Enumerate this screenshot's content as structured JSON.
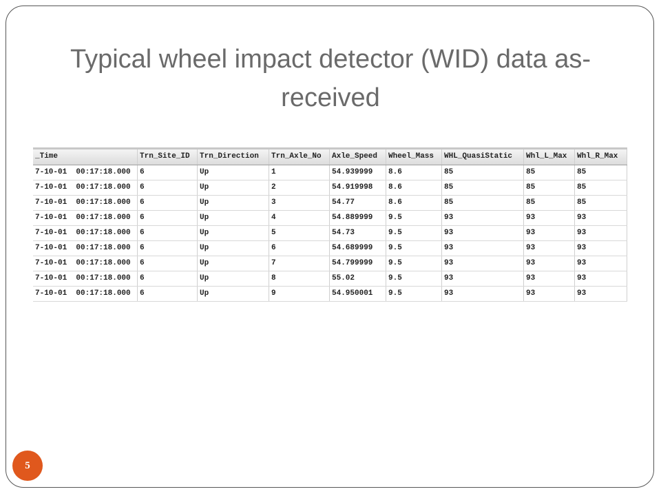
{
  "slide": {
    "title": "Typical wheel impact detector (WID) data as-received",
    "page_number": "5"
  },
  "table": {
    "columns": [
      "_Time",
      "Trn_Site_ID",
      "Trn_Direction",
      "Trn_Axle_No",
      "Axle_Speed",
      "Wheel_Mass",
      "WHL_QuasiStatic",
      "Whl_L_Max",
      "Whl_R_Max"
    ],
    "rows": [
      [
        "7-10-01  00:17:18.000",
        "6",
        "Up",
        "1",
        "54.939999",
        "8.6",
        "85",
        "85",
        "85"
      ],
      [
        "7-10-01  00:17:18.000",
        "6",
        "Up",
        "2",
        "54.919998",
        "8.6",
        "85",
        "85",
        "85"
      ],
      [
        "7-10-01  00:17:18.000",
        "6",
        "Up",
        "3",
        "54.77",
        "8.6",
        "85",
        "85",
        "85"
      ],
      [
        "7-10-01  00:17:18.000",
        "6",
        "Up",
        "4",
        "54.889999",
        "9.5",
        "93",
        "93",
        "93"
      ],
      [
        "7-10-01  00:17:18.000",
        "6",
        "Up",
        "5",
        "54.73",
        "9.5",
        "93",
        "93",
        "93"
      ],
      [
        "7-10-01  00:17:18.000",
        "6",
        "Up",
        "6",
        "54.689999",
        "9.5",
        "93",
        "93",
        "93"
      ],
      [
        "7-10-01  00:17:18.000",
        "6",
        "Up",
        "7",
        "54.799999",
        "9.5",
        "93",
        "93",
        "93"
      ],
      [
        "7-10-01  00:17:18.000",
        "6",
        "Up",
        "8",
        "55.02",
        "9.5",
        "93",
        "93",
        "93"
      ],
      [
        "7-10-01  00:17:18.000",
        "6",
        "Up",
        "9",
        "54.950001",
        "9.5",
        "93",
        "93",
        "93"
      ]
    ]
  }
}
